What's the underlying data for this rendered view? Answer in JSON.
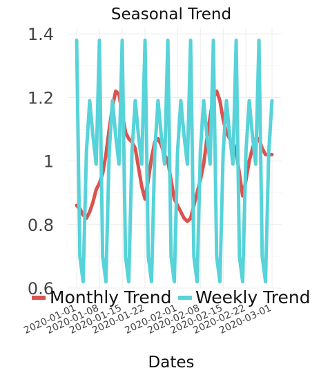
{
  "chart_data": {
    "type": "line",
    "title": "Seasonal Trend",
    "xlabel": "Dates",
    "ylabel": "",
    "ylim": [
      0.6,
      1.42
    ],
    "yticks": [
      0.6,
      0.8,
      1,
      1.2,
      1.4
    ],
    "ytick_labels": [
      "0.6",
      "0.8",
      "1",
      "1.2",
      "1.4"
    ],
    "xlim": [
      "2020-01-01",
      "2020-03-02"
    ],
    "xticks": [
      "2020-01-01",
      "2020-01-08",
      "2020-01-15",
      "2020-01-22",
      "2020-02-01",
      "2020-02-08",
      "2020-02-15",
      "2020-02-22",
      "2020-03-01"
    ],
    "grid": true,
    "legend_position": "bottom",
    "x": [
      "2020-01-01",
      "2020-01-02",
      "2020-01-03",
      "2020-01-04",
      "2020-01-05",
      "2020-01-06",
      "2020-01-07",
      "2020-01-08",
      "2020-01-09",
      "2020-01-10",
      "2020-01-11",
      "2020-01-12",
      "2020-01-13",
      "2020-01-14",
      "2020-01-15",
      "2020-01-16",
      "2020-01-17",
      "2020-01-18",
      "2020-01-19",
      "2020-01-20",
      "2020-01-21",
      "2020-01-22",
      "2020-01-23",
      "2020-01-24",
      "2020-01-25",
      "2020-01-26",
      "2020-01-27",
      "2020-01-28",
      "2020-01-29",
      "2020-01-30",
      "2020-01-31",
      "2020-02-01",
      "2020-02-02",
      "2020-02-03",
      "2020-02-04",
      "2020-02-05",
      "2020-02-06",
      "2020-02-07",
      "2020-02-08",
      "2020-02-09",
      "2020-02-10",
      "2020-02-11",
      "2020-02-12",
      "2020-02-13",
      "2020-02-14",
      "2020-02-15",
      "2020-02-16",
      "2020-02-17",
      "2020-02-18",
      "2020-02-19",
      "2020-02-20",
      "2020-02-21",
      "2020-02-22",
      "2020-02-23",
      "2020-02-24",
      "2020-02-25",
      "2020-02-26",
      "2020-02-27",
      "2020-02-28",
      "2020-02-29",
      "2020-03-01"
    ],
    "series": [
      {
        "name": "Monthly Trend",
        "color": "#d9534f",
        "values": [
          0.86,
          0.85,
          0.83,
          0.82,
          0.84,
          0.87,
          0.91,
          0.93,
          0.96,
          1.02,
          1.1,
          1.17,
          1.22,
          1.21,
          1.15,
          1.09,
          1.07,
          1.06,
          1.04,
          0.98,
          0.92,
          0.88,
          0.94,
          1.01,
          1.06,
          1.07,
          1.05,
          1.02,
          1.0,
          0.94,
          0.88,
          0.86,
          0.84,
          0.82,
          0.81,
          0.82,
          0.86,
          0.9,
          0.94,
          0.99,
          1.07,
          1.14,
          1.2,
          1.22,
          1.19,
          1.13,
          1.09,
          1.07,
          1.06,
          1.03,
          0.96,
          0.89,
          0.94,
          1.0,
          1.04,
          1.07,
          1.07,
          1.04,
          1.02,
          1.02,
          1.02
        ]
      },
      {
        "name": "Weekly Trend",
        "color": "#57d3d9",
        "values": [
          1.38,
          0.7,
          0.62,
          1.03,
          1.19,
          1.08,
          0.99,
          1.38,
          0.7,
          0.62,
          1.03,
          1.19,
          1.08,
          0.99,
          1.38,
          0.7,
          0.62,
          1.03,
          1.19,
          1.08,
          0.99,
          1.38,
          0.7,
          0.62,
          1.03,
          1.19,
          1.08,
          0.99,
          1.38,
          0.7,
          0.62,
          1.03,
          1.19,
          1.08,
          0.99,
          1.38,
          0.7,
          0.62,
          1.03,
          1.19,
          1.08,
          0.99,
          1.38,
          0.7,
          0.62,
          1.03,
          1.19,
          1.08,
          0.99,
          1.38,
          0.7,
          0.62,
          1.03,
          1.19,
          1.08,
          0.99,
          1.38,
          0.7,
          0.62,
          1.03,
          1.19
        ]
      }
    ]
  }
}
